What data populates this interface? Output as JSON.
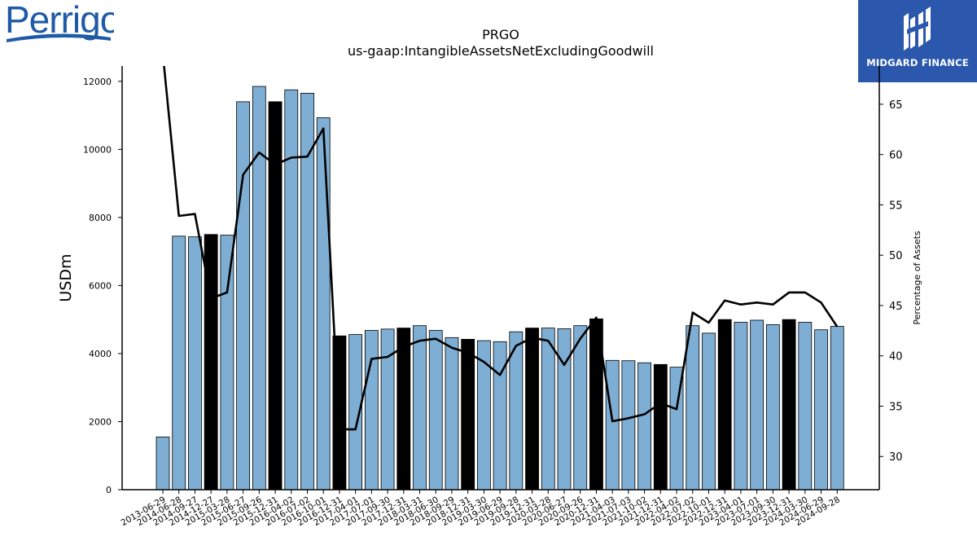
{
  "branding": {
    "company_logo_text": "Perrigo",
    "badge_text": "MIDGARD FINANCE"
  },
  "chart_data": {
    "type": "bar",
    "title": "PRGO",
    "subtitle": "us-gaap:IntangibleAssetsNetExcludingGoodwill",
    "ylabel": "USDm",
    "y2label": "Percentage of Assets",
    "ylim": [
      0,
      12450
    ],
    "y2lim": [
      26.7,
      68.8
    ],
    "yticks": [
      0,
      2000,
      4000,
      6000,
      8000,
      10000,
      12000
    ],
    "y2ticks": [
      30,
      35,
      40,
      45,
      50,
      55,
      60,
      65
    ],
    "colors": {
      "bar": "#7eaed3",
      "bar_highlight": "#000000",
      "line": "#000000"
    },
    "categories": [
      "2013-06-29",
      "2014-06-28",
      "2014-09-27",
      "2014-12-27",
      "2015-03-28",
      "2015-06-27",
      "2015-09-26",
      "2015-12-31",
      "2016-04-02",
      "2016-07-02",
      "2016-10-01",
      "2016-12-31",
      "2017-04-01",
      "2017-07-01",
      "2017-09-30",
      "2017-12-31",
      "2018-03-31",
      "2018-06-30",
      "2018-09-29",
      "2018-12-31",
      "2019-03-30",
      "2019-06-29",
      "2019-09-28",
      "2019-12-31",
      "2020-03-28",
      "2020-06-27",
      "2020-09-26",
      "2020-12-31",
      "2021-04-03",
      "2021-07-03",
      "2021-10-02",
      "2021-12-31",
      "2022-04-02",
      "2022-07-02",
      "2022-10-01",
      "2022-12-31",
      "2023-04-01",
      "2023-07-01",
      "2023-09-30",
      "2023-12-31",
      "2024-03-30",
      "2024-06-29",
      "2024-09-28"
    ],
    "series": [
      {
        "values": [
          1550,
          7450,
          7430,
          7500,
          7480,
          11400,
          11850,
          11400,
          11750,
          11650,
          10930,
          4520,
          4560,
          4680,
          4720,
          4750,
          4820,
          4680,
          4470,
          4420,
          4380,
          4350,
          4640,
          4750,
          4750,
          4730,
          4820,
          5020,
          3800,
          3790,
          3730,
          3680,
          3600,
          4820,
          4600,
          5000,
          4920,
          4980,
          4850,
          5000,
          4920,
          4700,
          4800
        ],
        "highlight": [
          false,
          false,
          false,
          true,
          false,
          false,
          false,
          true,
          false,
          false,
          false,
          true,
          false,
          false,
          false,
          true,
          false,
          false,
          false,
          true,
          false,
          false,
          false,
          true,
          false,
          false,
          false,
          true,
          false,
          false,
          false,
          true,
          false,
          false,
          false,
          true,
          false,
          false,
          false,
          true,
          false,
          false,
          false
        ]
      },
      {
        "axis": "right",
        "values": [
          70,
          53.9,
          54.1,
          45.7,
          46.3,
          58,
          60.2,
          59,
          59.7,
          59.8,
          62.6,
          32.7,
          32.7,
          39.7,
          39.9,
          40.9,
          41.5,
          41.7,
          40.8,
          40.3,
          39.4,
          38.1,
          41,
          41.8,
          41.5,
          39.1,
          41.7,
          43.8,
          33.5,
          33.8,
          34.2,
          35.3,
          34.7,
          44.3,
          43.3,
          45.5,
          45.1,
          45.3,
          45.1,
          46.3,
          46.3,
          45.3,
          42.9
        ]
      }
    ],
    "legend": "none",
    "grid": false
  }
}
